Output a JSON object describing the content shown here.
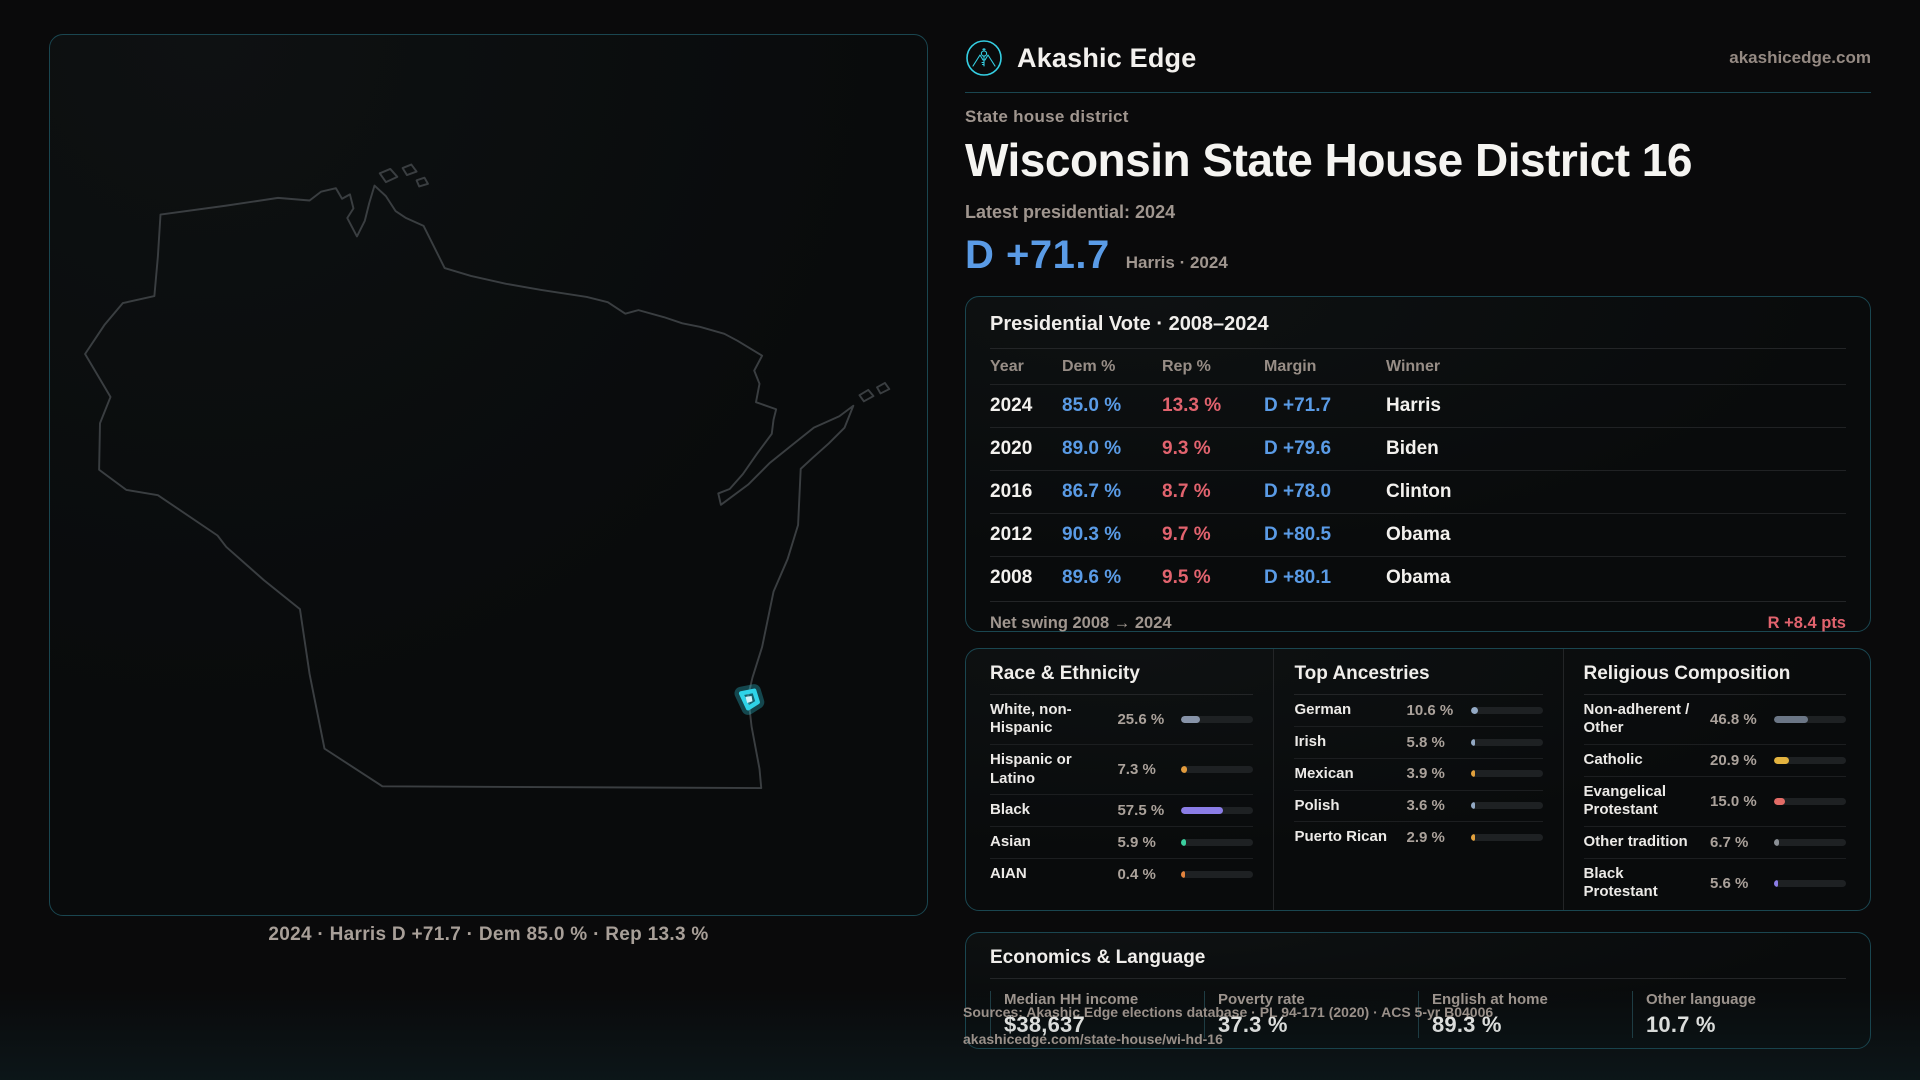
{
  "brand": {
    "name": "Akashic Edge",
    "domain": "akashicedge.com"
  },
  "header": {
    "eyebrow": "State house district",
    "title": "Wisconsin State House District 16",
    "latest_label": "Latest presidential: 2024",
    "margin_value": "D +71.7",
    "margin_context": "Harris · 2024"
  },
  "map": {
    "caption": "2024 · Harris D +71.7 · Dem 85.0 % · Rep 13.3 %",
    "district_color": "#2fd3e8"
  },
  "vote_table": {
    "title": "Presidential Vote · 2008–2024",
    "columns": [
      "Year",
      "Dem %",
      "Rep %",
      "Margin",
      "Winner"
    ],
    "rows": [
      {
        "year": "2024",
        "dem": "85.0 %",
        "rep": "13.3 %",
        "margin": "D +71.7",
        "winner": "Harris"
      },
      {
        "year": "2020",
        "dem": "89.0 %",
        "rep": "9.3 %",
        "margin": "D +79.6",
        "winner": "Biden"
      },
      {
        "year": "2016",
        "dem": "86.7 %",
        "rep": "8.7 %",
        "margin": "D +78.0",
        "winner": "Clinton"
      },
      {
        "year": "2012",
        "dem": "90.3 %",
        "rep": "9.7 %",
        "margin": "D +80.5",
        "winner": "Obama"
      },
      {
        "year": "2008",
        "dem": "89.6 %",
        "rep": "9.5 %",
        "margin": "D +80.1",
        "winner": "Obama"
      }
    ],
    "net_swing_label": "Net swing 2008 → 2024",
    "net_swing_value": "R +8.4 pts"
  },
  "demographics": {
    "race": {
      "title": "Race & Ethnicity",
      "rows": [
        {
          "label": "White, non-Hispanic",
          "value": "25.6 %",
          "pct": 25.6,
          "color": "#8793a8"
        },
        {
          "label": "Hispanic or Latino",
          "value": "7.3 %",
          "pct": 7.3,
          "color": "#e29b3d"
        },
        {
          "label": "Black",
          "value": "57.5 %",
          "pct": 57.5,
          "color": "#8b7de6"
        },
        {
          "label": "Asian",
          "value": "5.9 %",
          "pct": 5.9,
          "color": "#3bcf9e"
        },
        {
          "label": "AIAN",
          "value": "0.4 %",
          "pct": 0.4,
          "color": "#e2833d"
        }
      ]
    },
    "ancestries": {
      "title": "Top Ancestries",
      "rows": [
        {
          "label": "German",
          "value": "10.6 %",
          "pct": 10.6,
          "color": "#93a9c4"
        },
        {
          "label": "Irish",
          "value": "5.8 %",
          "pct": 5.8,
          "color": "#93a9c4"
        },
        {
          "label": "Mexican",
          "value": "3.9 %",
          "pct": 3.9,
          "color": "#e2a13d"
        },
        {
          "label": "Polish",
          "value": "3.6 %",
          "pct": 3.6,
          "color": "#93a9c4"
        },
        {
          "label": "Puerto Rican",
          "value": "2.9 %",
          "pct": 2.9,
          "color": "#e2a13d"
        }
      ]
    },
    "religion": {
      "title": "Religious Composition",
      "rows": [
        {
          "label": "Non-adherent / Other",
          "value": "46.8 %",
          "pct": 46.8,
          "color": "#6b7686"
        },
        {
          "label": "Catholic",
          "value": "20.9 %",
          "pct": 20.9,
          "color": "#e3b33f"
        },
        {
          "label": "Evangelical Protestant",
          "value": "15.0 %",
          "pct": 15.0,
          "color": "#e26b66"
        },
        {
          "label": "Other tradition",
          "value": "6.7 %",
          "pct": 6.7,
          "color": "#8a8f95"
        },
        {
          "label": "Black Protestant",
          "value": "5.6 %",
          "pct": 5.6,
          "color": "#8b7de6"
        }
      ]
    }
  },
  "economics": {
    "title": "Economics & Language",
    "stats": [
      {
        "label": "Median HH income",
        "value": "$38,637"
      },
      {
        "label": "Poverty rate",
        "value": "37.3 %"
      },
      {
        "label": "English at home",
        "value": "89.3 %"
      },
      {
        "label": "Other language",
        "value": "10.7 %"
      }
    ]
  },
  "footer": {
    "line1": "Sources: Akashic Edge elections database · PL 94-171 (2020) · ACS 5-yr B04006",
    "line2": "akashicedge.com/state-house/wi-hd-16"
  }
}
